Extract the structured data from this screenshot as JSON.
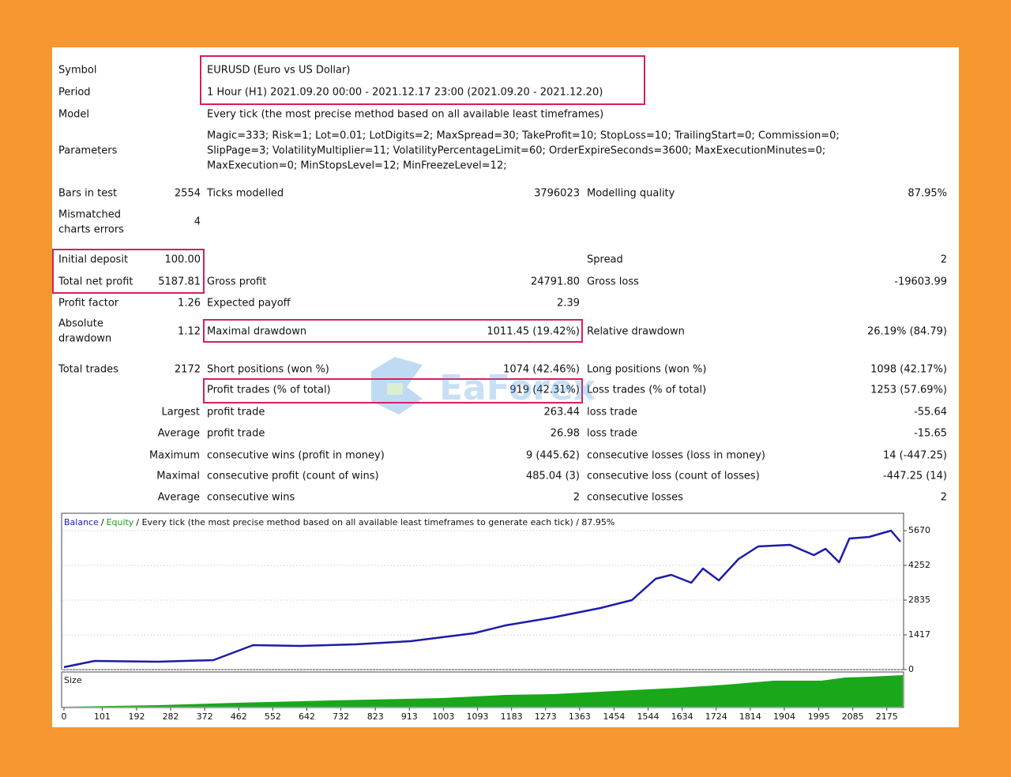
{
  "report": {
    "symbol": {
      "label": "Symbol",
      "value": "EURUSD (Euro vs US Dollar)"
    },
    "period": {
      "label": "Period",
      "value": "1 Hour (H1) 2021.09.20 00:00 - 2021.12.17 23:00 (2021.09.20 - 2021.12.20)"
    },
    "model": {
      "label": "Model",
      "value": "Every tick (the most precise method based on all available least timeframes)"
    },
    "parameters": {
      "label": "Parameters",
      "lines": [
        "Magic=333; Risk=1; Lot=0.01; LotDigits=2; MaxSpread=30; TakeProfit=10; StopLoss=10; TrailingStart=0; Commission=0;",
        "SlipPage=3; VolatilityMultiplier=11; VolatilityPercentageLimit=60; OrderExpireSeconds=3600; MaxExecutionMinutes=0;",
        "MaxExecution=0; MinStopsLevel=12; MinFreezeLevel=12;"
      ]
    },
    "bars_in_test": {
      "label": "Bars in test",
      "value": "2554"
    },
    "ticks_modelled": {
      "label": "Ticks modelled",
      "value": "3796023"
    },
    "modelling_quality": {
      "label": "Modelling quality",
      "value": "87.95%"
    },
    "mismatched": {
      "label": [
        "Mismatched",
        "charts errors"
      ],
      "value": "4"
    },
    "initial_deposit": {
      "label": "Initial deposit",
      "value": "100.00"
    },
    "spread": {
      "label": "Spread",
      "value": "2"
    },
    "total_net_profit": {
      "label": "Total net profit",
      "value": "5187.81"
    },
    "gross_profit": {
      "label": "Gross profit",
      "value": "24791.80"
    },
    "gross_loss": {
      "label": "Gross loss",
      "value": "-19603.99"
    },
    "profit_factor": {
      "label": "Profit factor",
      "value": "1.26"
    },
    "expected_payoff": {
      "label": "Expected payoff",
      "value": "2.39"
    },
    "absolute_drawdown": {
      "label": [
        "Absolute",
        "drawdown"
      ],
      "value": "1.12"
    },
    "maximal_drawdown": {
      "label": "Maximal drawdown",
      "value": "1011.45 (19.42%)"
    },
    "relative_drawdown": {
      "label": "Relative drawdown",
      "value": "26.19% (84.79)"
    },
    "total_trades": {
      "label": "Total trades",
      "value": "2172"
    },
    "short_positions": {
      "label": "Short positions (won %)",
      "value": "1074 (42.46%)"
    },
    "long_positions": {
      "label": "Long positions (won %)",
      "value": "1098 (42.17%)"
    },
    "profit_trades": {
      "label": "Profit trades (% of total)",
      "value": "919 (42.31%)"
    },
    "loss_trades": {
      "label": "Loss trades (% of total)",
      "value": "1253 (57.69%)"
    },
    "stats": [
      {
        "prefix": "Largest",
        "profit_label": "profit trade",
        "profit": "263.44",
        "loss_label": "loss trade",
        "loss": "-55.64"
      },
      {
        "prefix": "Average",
        "profit_label": "profit trade",
        "profit": "26.98",
        "loss_label": "loss trade",
        "loss": "-15.65"
      },
      {
        "prefix": "Maximum",
        "profit_label": "consecutive wins (profit in money)",
        "profit": "9 (445.62)",
        "loss_label": "consecutive losses (loss in money)",
        "loss": "14 (-447.25)"
      },
      {
        "prefix": "Maximal",
        "profit_label": "consecutive profit (count of wins)",
        "profit": "485.04 (3)",
        "loss_label": "consecutive loss (count of losses)",
        "loss": "-447.25 (14)"
      },
      {
        "prefix": "Average",
        "profit_label": "consecutive wins",
        "profit": "2",
        "loss_label": "consecutive losses",
        "loss": "2"
      }
    ],
    "watermark": "EaForex"
  },
  "chart_data": {
    "type": "line",
    "equity_label": "Equity",
    "separator": "/",
    "description": "/ Every tick (the most precise method based on all available least timeframes to generate each tick) / 87.95%",
    "size_label": "Size",
    "x": [
      0,
      81,
      248,
      395,
      500,
      624,
      770,
      916,
      1083,
      1167,
      1292,
      1418,
      1501,
      1564,
      1605,
      1658,
      1689,
      1731,
      1783,
      1835,
      1919,
      1982,
      2013,
      2049,
      2076,
      2128,
      2186,
      2211
    ],
    "series": [
      {
        "name": "Balance",
        "color": "#1c1ca8",
        "values": [
          100,
          354,
          322,
          387,
          999,
          966,
          1031,
          1160,
          1482,
          1804,
          2126,
          2513,
          2835,
          3705,
          3866,
          3544,
          4124,
          3640,
          4510,
          5026,
          5090,
          4671,
          4929,
          4381,
          5348,
          5412,
          5670,
          5219
        ]
      }
    ],
    "equity_color": "#18a018",
    "xlim": [
      0,
      2213
    ],
    "ylim": [
      0,
      6380
    ],
    "xticks": [
      0,
      101,
      192,
      282,
      372,
      462,
      552,
      642,
      732,
      823,
      913,
      1003,
      1093,
      1183,
      1273,
      1363,
      1454,
      1544,
      1634,
      1724,
      1814,
      1904,
      1995,
      2085,
      2175
    ],
    "yticks": [
      0,
      1417,
      2835,
      4252,
      5670
    ],
    "grid": true
  }
}
